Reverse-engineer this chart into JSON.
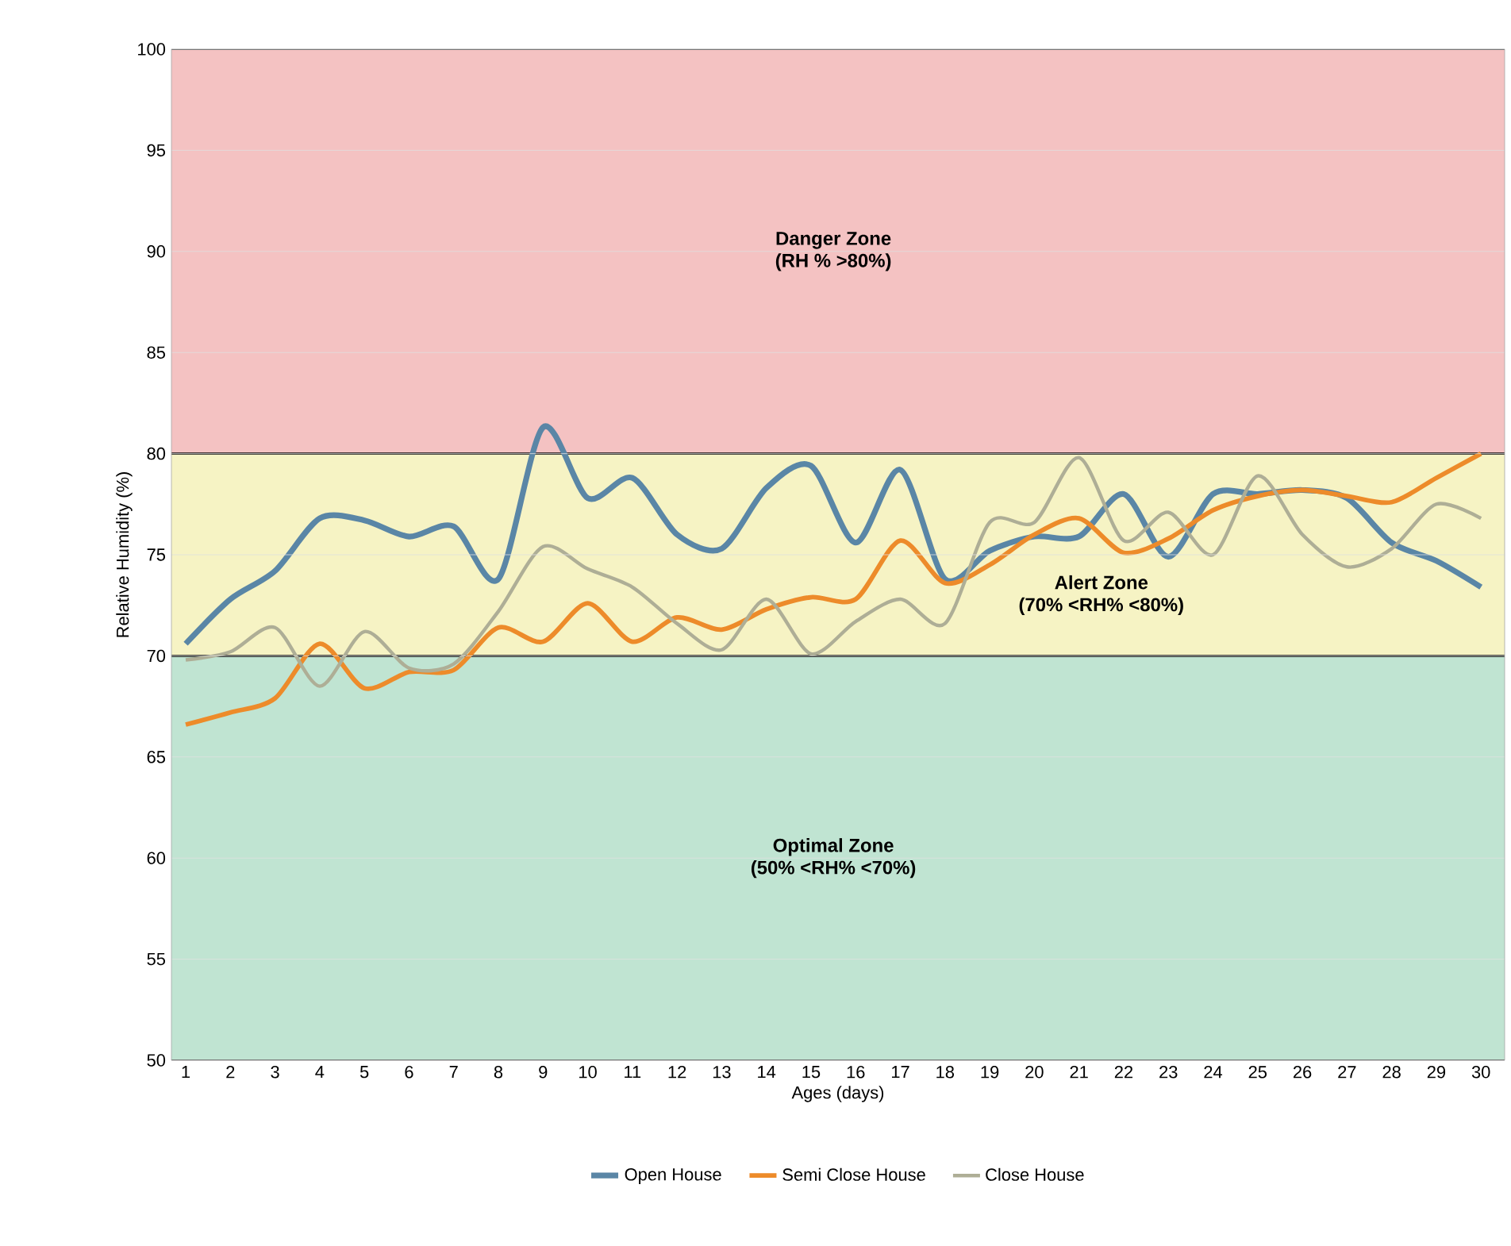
{
  "chart_data": {
    "type": "line",
    "xlabel": "Ages (days)",
    "ylabel": "Relative Humidity (%)",
    "categories": [
      "1",
      "2",
      "3",
      "4",
      "5",
      "6",
      "7",
      "8",
      "9",
      "10",
      "11",
      "12",
      "13",
      "14",
      "15",
      "16",
      "17",
      "18",
      "19",
      "20",
      "21",
      "22",
      "23",
      "24",
      "25",
      "26",
      "27",
      "28",
      "29",
      "30"
    ],
    "series": [
      {
        "name": "Open House",
        "color": "#5a86a6",
        "values": [
          70.6,
          72.8,
          74.2,
          76.8,
          76.7,
          75.9,
          76.4,
          73.8,
          81.3,
          77.8,
          78.8,
          76.0,
          75.3,
          78.3,
          79.4,
          75.6,
          79.2,
          73.8,
          75.2,
          75.9,
          75.9,
          78.0,
          74.9,
          78.0,
          78.0,
          78.2,
          77.8,
          75.6,
          74.7,
          73.4
        ]
      },
      {
        "name": "Semi Close House",
        "color": "#ed8b2a",
        "values": [
          66.6,
          67.2,
          67.9,
          70.6,
          68.4,
          69.2,
          69.3,
          71.4,
          70.7,
          72.6,
          70.7,
          71.9,
          71.3,
          72.3,
          72.9,
          72.8,
          75.7,
          73.6,
          74.5,
          76.0,
          76.8,
          75.1,
          75.8,
          77.2,
          77.9,
          78.2,
          77.9,
          77.6,
          78.8,
          80.0
        ]
      },
      {
        "name": "Close House",
        "color": "#aeae96",
        "values": [
          69.8,
          70.2,
          71.4,
          68.5,
          71.2,
          69.4,
          69.6,
          72.2,
          75.4,
          74.3,
          73.4,
          71.6,
          70.3,
          72.8,
          70.1,
          71.7,
          72.8,
          71.6,
          76.6,
          76.6,
          79.8,
          75.7,
          77.1,
          75.0,
          78.9,
          76.0,
          74.4,
          75.3,
          77.5,
          76.8
        ]
      }
    ],
    "ylim": [
      50,
      100
    ],
    "yticks": [
      50,
      55,
      60,
      65,
      70,
      75,
      80,
      85,
      90,
      95,
      100
    ],
    "bands": [
      {
        "axis": "y",
        "from": 80,
        "to": 100,
        "label": "Danger Zone",
        "color": "#f4c2c2"
      },
      {
        "axis": "y",
        "from": 70,
        "to": 80,
        "label": "Alert Zone",
        "color": "#f6f3c4"
      },
      {
        "axis": "y",
        "from": 50,
        "to": 70,
        "label": "Optimal Zone",
        "color": "#c0e4d2"
      }
    ],
    "annotations": [
      "(RH %  >80%)",
      "(70% <RH% <80%)",
      "(50% <RH% <70%)"
    ],
    "grid": "y",
    "legend": "bottom",
    "marker": "none",
    "line_style": "solid"
  }
}
